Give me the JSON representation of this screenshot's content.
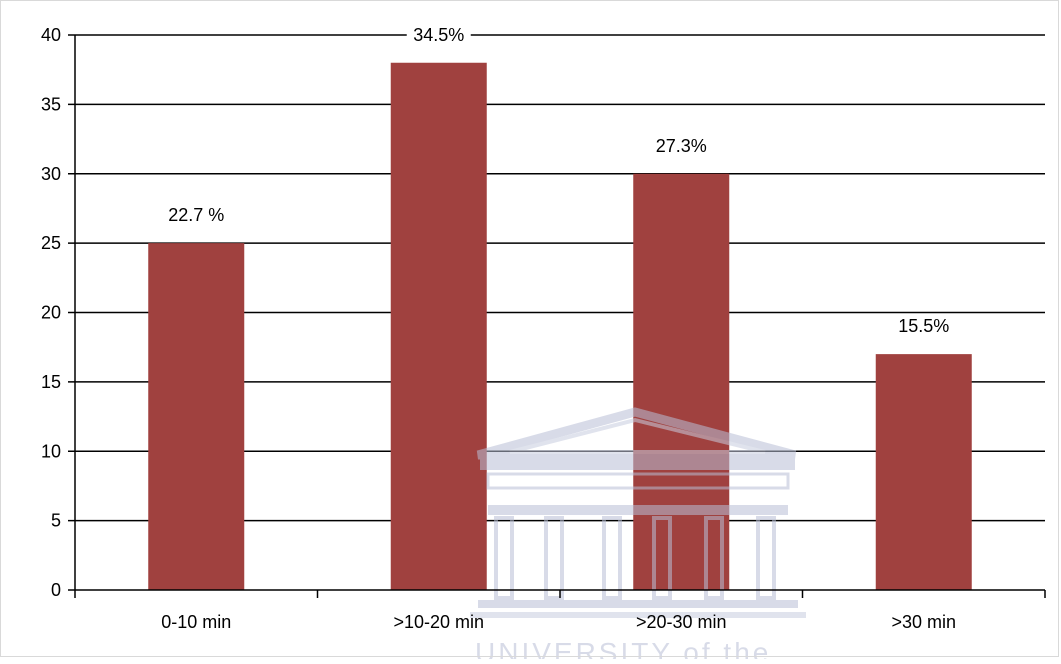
{
  "chart_data": {
    "type": "bar",
    "categories": [
      "0-10 min",
      ">10-20 min",
      ">20-30 min",
      ">30 min"
    ],
    "values": [
      25,
      38,
      30,
      17
    ],
    "data_labels": [
      "22.7 %",
      "34.5%",
      "27.3%",
      "15.5%"
    ],
    "ylim": [
      0,
      40
    ],
    "yticks": [
      0,
      5,
      10,
      15,
      20,
      25,
      30,
      35,
      40
    ],
    "grid": true,
    "bar_color": "#a0413f"
  },
  "watermark": {
    "text": "UNIVERSITY of the",
    "color": "#b9bfd6"
  }
}
